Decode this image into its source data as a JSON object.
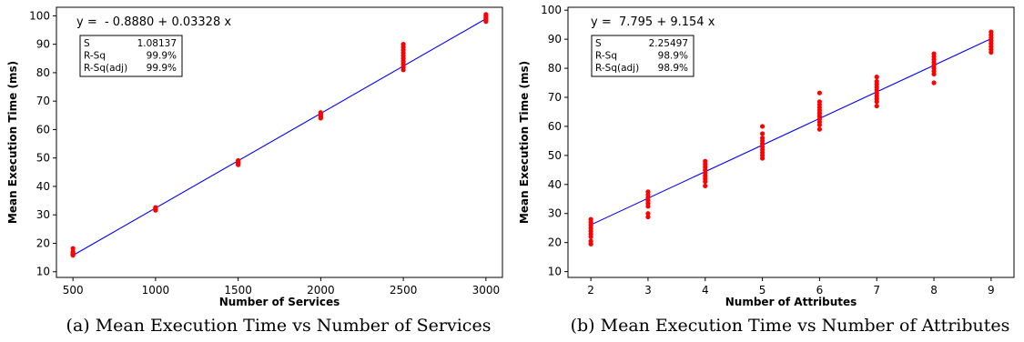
{
  "chart_data": [
    {
      "type": "scatter",
      "title": "",
      "xlabel": "Number of Services",
      "ylabel": "Mean Execution Time (ms)",
      "xlim": [
        400,
        3100
      ],
      "ylim": [
        8,
        103
      ],
      "xticks": [
        500,
        1000,
        1500,
        2000,
        2500,
        3000
      ],
      "yticks": [
        10,
        20,
        30,
        40,
        50,
        60,
        70,
        80,
        90,
        100
      ],
      "grid": false,
      "fit_line": {
        "intercept": -0.888,
        "slope": 0.03328,
        "x_range": [
          500,
          3000
        ],
        "color": "#0000ff"
      },
      "equation": "y =  - 0.8880 + 0.03328 x",
      "stats": [
        {
          "label": "S",
          "value": "1.08137"
        },
        {
          "label": "R-Sq",
          "value": "99.9%"
        },
        {
          "label": "R-Sq(adj)",
          "value": "99.9%"
        }
      ],
      "point_color": "#ff0000",
      "groups": [
        {
          "x": 500,
          "y": [
            15.8,
            16.0,
            16.2,
            16.4,
            16.6,
            17.0,
            18.2
          ]
        },
        {
          "x": 1000,
          "y": [
            31.6,
            31.9,
            32.1,
            32.3,
            32.6
          ]
        },
        {
          "x": 1500,
          "y": [
            47.6,
            47.9,
            48.2,
            48.5,
            48.8,
            49.1
          ]
        },
        {
          "x": 2000,
          "y": [
            64.0,
            64.4,
            64.8,
            65.2,
            65.6,
            66.0
          ]
        },
        {
          "x": 2500,
          "y": [
            81.0,
            82.0,
            83.0,
            84.0,
            85.0,
            86.0,
            87.0,
            88.0,
            89.0,
            90.0
          ]
        },
        {
          "x": 3000,
          "y": [
            98.0,
            98.5,
            99.0,
            99.5,
            100.0,
            100.5
          ]
        }
      ],
      "caption": "(a) Mean Execution Time vs Number of Services"
    },
    {
      "type": "scatter",
      "title": "",
      "xlabel": "Number of Attributes",
      "ylabel": "Mean Execution Time (ms)",
      "xlim": [
        1.6,
        9.4
      ],
      "ylim": [
        8,
        101
      ],
      "xticks": [
        2,
        3,
        4,
        5,
        6,
        7,
        8,
        9
      ],
      "yticks": [
        10,
        20,
        30,
        40,
        50,
        60,
        70,
        80,
        90,
        100
      ],
      "grid": false,
      "fit_line": {
        "intercept": 7.795,
        "slope": 9.154,
        "x_range": [
          2,
          9
        ],
        "color": "#0000ff"
      },
      "equation": "y =  7.795 + 9.154 x",
      "stats": [
        {
          "label": "S",
          "value": "2.25497"
        },
        {
          "label": "R-Sq",
          "value": "98.9%"
        },
        {
          "label": "R-Sq(adj)",
          "value": "98.9%"
        }
      ],
      "point_color": "#ff0000",
      "groups": [
        {
          "x": 2,
          "y": [
            19.5,
            20.5,
            22.0,
            23.0,
            24.0,
            25.0,
            26.0,
            27.0,
            28.0
          ]
        },
        {
          "x": 3,
          "y": [
            28.8,
            30.0,
            32.5,
            33.5,
            34.5,
            35.5,
            36.5,
            37.5
          ]
        },
        {
          "x": 4,
          "y": [
            39.5,
            41.0,
            42.0,
            43.0,
            44.0,
            45.0,
            46.0,
            47.0,
            48.0
          ]
        },
        {
          "x": 5,
          "y": [
            49.0,
            50.0,
            51.0,
            52.0,
            53.0,
            54.0,
            55.0,
            56.0,
            57.5,
            60.0
          ]
        },
        {
          "x": 6,
          "y": [
            59.0,
            60.5,
            61.5,
            62.5,
            63.5,
            64.5,
            65.5,
            66.5,
            67.5,
            68.5,
            71.5
          ]
        },
        {
          "x": 7,
          "y": [
            67.0,
            68.5,
            69.5,
            70.5,
            71.5,
            72.5,
            73.5,
            74.5,
            75.5,
            77.0
          ]
        },
        {
          "x": 8,
          "y": [
            75.0,
            78.0,
            79.0,
            80.0,
            81.0,
            82.0,
            83.0,
            84.0,
            85.0
          ]
        },
        {
          "x": 9,
          "y": [
            85.5,
            86.5,
            87.5,
            88.5,
            89.5,
            90.5,
            91.5,
            92.5
          ]
        }
      ],
      "caption": "(b) Mean Execution Time vs Number of Attributes"
    }
  ]
}
